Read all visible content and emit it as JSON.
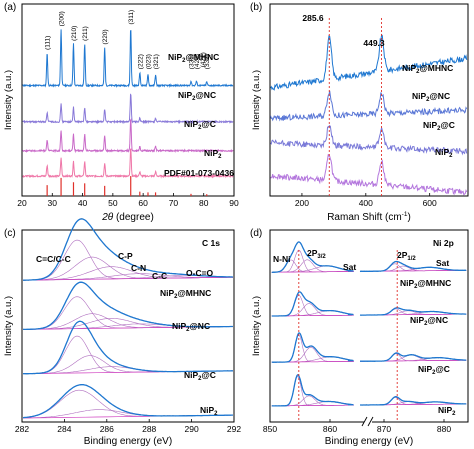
{
  "chart_data": [
    {
      "panel": "(a)",
      "type": "line",
      "xlabel_italic": "2θ",
      "xlabel_rest": " (degree)",
      "ylabel": "Intensity (a.u.)",
      "xlim": [
        20,
        90
      ],
      "xticks": [
        20,
        30,
        40,
        50,
        60,
        70,
        80,
        90
      ],
      "series": [
        {
          "name": "NiP₂@MHNC",
          "color": "#1f78d1",
          "offset": 3.05,
          "peaks": [
            [
              28.3,
              0.9
            ],
            [
              32.9,
              1.55
            ],
            [
              37.0,
              1.15
            ],
            [
              40.7,
              1.15
            ],
            [
              47.3,
              1.05
            ],
            [
              55.9,
              1.6
            ],
            [
              58.9,
              0.35
            ],
            [
              61.6,
              0.3
            ],
            [
              64.1,
              0.3
            ],
            [
              75.8,
              0.12
            ],
            [
              77.6,
              0.12
            ],
            [
              81.0,
              0.1
            ]
          ]
        },
        {
          "name": "NiP₂@NC",
          "color": "#8878d8",
          "offset": 2.05,
          "peaks": [
            [
              28.3,
              0.25
            ],
            [
              32.9,
              0.5
            ],
            [
              37.0,
              0.4
            ],
            [
              40.7,
              0.4
            ],
            [
              47.3,
              0.35
            ],
            [
              55.9,
              0.8
            ],
            [
              58.9,
              0.1
            ],
            [
              64.1,
              0.1
            ]
          ]
        },
        {
          "name": "NiP₂@C",
          "color": "#c969c8",
          "offset": 1.25,
          "peaks": [
            [
              28.3,
              0.3
            ],
            [
              32.9,
              0.55
            ],
            [
              37.0,
              0.45
            ],
            [
              40.7,
              0.45
            ],
            [
              47.3,
              0.4
            ],
            [
              55.9,
              0.9
            ],
            [
              58.9,
              0.12
            ],
            [
              64.1,
              0.12
            ]
          ]
        },
        {
          "name": "NiP₂",
          "color": "#ef77a8",
          "offset": 0.55,
          "peaks": [
            [
              28.3,
              0.3
            ],
            [
              32.9,
              0.5
            ],
            [
              37.0,
              0.4
            ],
            [
              40.7,
              0.4
            ],
            [
              47.3,
              0.35
            ],
            [
              55.9,
              0.8
            ],
            [
              58.9,
              0.12
            ],
            [
              64.1,
              0.12
            ]
          ]
        }
      ],
      "reference": {
        "name": "PDF#01-073-0436",
        "color": "#e0302a",
        "lines": [
          [
            28.3,
            0.3
          ],
          [
            32.9,
            0.5
          ],
          [
            37.0,
            0.38
          ],
          [
            40.7,
            0.35
          ],
          [
            47.3,
            0.28
          ],
          [
            55.9,
            0.55
          ],
          [
            58.9,
            0.12
          ],
          [
            61.6,
            0.1
          ],
          [
            64.1,
            0.1
          ],
          [
            75.8,
            0.06
          ],
          [
            81.0,
            0.05
          ]
        ]
      },
      "hkl": [
        {
          "x": 28.3,
          "label": "(111)"
        },
        {
          "x": 32.9,
          "label": "(200)"
        },
        {
          "x": 37.0,
          "label": "(210)"
        },
        {
          "x": 40.7,
          "label": "(211)"
        },
        {
          "x": 47.3,
          "label": "(220)"
        },
        {
          "x": 55.9,
          "label": "(311)"
        },
        {
          "x": 58.9,
          "label": "(222)"
        },
        {
          "x": 61.6,
          "label": "(023)"
        },
        {
          "x": 64.1,
          "label": "(321)"
        },
        {
          "x": 75.8,
          "label": "(331)"
        },
        {
          "x": 77.6,
          "label": "(420)"
        },
        {
          "x": 79.6,
          "label": "(421)"
        },
        {
          "x": 81.0,
          "label": "(332)"
        }
      ]
    },
    {
      "panel": "(b)",
      "type": "line",
      "xlabel": "Raman Shift (cm⁻¹)",
      "ylabel": "Intensity (a.u.)",
      "xlim": [
        100,
        720
      ],
      "xticks": [
        200,
        400,
        600
      ],
      "peak_labels": [
        285.6,
        449.3
      ],
      "series": [
        {
          "name": "NiP₂@MHNC",
          "color": "#1f78d1",
          "offset": 3.0,
          "slope": 0.35,
          "peaks": [
            [
              285.6,
              1.0
            ],
            [
              449.3,
              0.85
            ]
          ]
        },
        {
          "name": "NiP₂@NC",
          "color": "#5b78d6",
          "offset": 2.0,
          "slope": 0.1,
          "peaks": [
            [
              285.6,
              0.6
            ],
            [
              449.3,
              0.5
            ]
          ]
        },
        {
          "name": "NiP₂@C",
          "color": "#7a7ad8",
          "offset": 1.2,
          "slope": -0.1,
          "peaks": [
            [
              285.6,
              0.5
            ],
            [
              449.3,
              0.45
            ]
          ]
        },
        {
          "name": "NiP₂",
          "color": "#b477dd",
          "offset": 0.3,
          "slope": -0.2,
          "peaks": [
            [
              285.6,
              0.65
            ],
            [
              449.3,
              0.6
            ]
          ]
        }
      ]
    },
    {
      "panel": "(c)",
      "type": "line",
      "title": "C 1s",
      "xlabel": "Binding energy (eV)",
      "ylabel": "Intensity (a.u.)",
      "xlim": [
        282,
        292
      ],
      "xticks": [
        282,
        284,
        286,
        288,
        290,
        292
      ],
      "annotations": [
        "C=C/C-C",
        "C-P",
        "C-N",
        "C-C",
        "O-C=O"
      ],
      "series": [
        {
          "name": "NiP₂@MHNC",
          "offset": 2.85,
          "components": [
            [
              284.6,
              0.8,
              0.6
            ],
            [
              285.3,
              0.45,
              0.8
            ],
            [
              286.2,
              0.25,
              1.0
            ],
            [
              287.5,
              0.1,
              1.2
            ],
            [
              289.5,
              0.05,
              1.2
            ]
          ]
        },
        {
          "name": "NiP₂@NC",
          "offset": 1.85,
          "components": [
            [
              284.6,
              0.65,
              0.6
            ],
            [
              285.3,
              0.3,
              0.8
            ],
            [
              286.2,
              0.2,
              1.0
            ],
            [
              287.5,
              0.08,
              1.2
            ]
          ]
        },
        {
          "name": "NiP₂@C",
          "offset": 0.95,
          "components": [
            [
              284.6,
              0.75,
              0.55
            ],
            [
              285.2,
              0.35,
              0.7
            ],
            [
              286.2,
              0.12,
              1.0
            ]
          ]
        },
        {
          "name": "NiP₂",
          "offset": 0.05,
          "components": [
            [
              284.7,
              0.55,
              0.9
            ],
            [
              285.6,
              0.15,
              1.1
            ]
          ]
        }
      ]
    },
    {
      "panel": "(d)",
      "type": "line",
      "title": "Ni 2p",
      "xlabel": "Binding energy (eV)",
      "ylabel": "Intensity (a.u.)",
      "xticks": [
        850,
        860,
        870,
        880
      ],
      "axis_break": [
        864,
        866
      ],
      "xlim": [
        850,
        884
      ],
      "annotations": [
        "N-Ni",
        "2P3/2",
        "Sat",
        "2P1/2",
        "Sat"
      ],
      "ref_lines": [
        854.8,
        872.2
      ],
      "series": [
        {
          "name": "NiP₂@MHNC",
          "offset": 3.05,
          "components": [
            [
              853.5,
              0.25,
              0.8
            ],
            [
              854.8,
              0.45,
              0.7
            ],
            [
              856.2,
              0.25,
              1.0
            ],
            [
              859.5,
              0.12,
              2.0
            ],
            [
              871.8,
              0.15,
              0.8
            ],
            [
              873.2,
              0.1,
              1.0
            ],
            [
              877.5,
              0.07,
              2.0
            ]
          ]
        },
        {
          "name": "NiP₂@NC",
          "offset": 2.15,
          "components": [
            [
              854.8,
              0.42,
              0.7
            ],
            [
              856.5,
              0.25,
              1.0
            ],
            [
              860.0,
              0.1,
              2.0
            ],
            [
              872.0,
              0.12,
              0.8
            ],
            [
              874.0,
              0.08,
              1.2
            ],
            [
              878.0,
              0.06,
              2.0
            ]
          ]
        },
        {
          "name": "NiP₂@C",
          "offset": 1.2,
          "components": [
            [
              854.8,
              0.55,
              0.6
            ],
            [
              856.8,
              0.3,
              1.0
            ],
            [
              860.2,
              0.1,
              2.0
            ],
            [
              872.0,
              0.15,
              0.7
            ],
            [
              874.5,
              0.12,
              1.2
            ],
            [
              879.0,
              0.06,
              2.0
            ]
          ]
        },
        {
          "name": "NiP₂",
          "offset": 0.3,
          "components": [
            [
              854.6,
              0.6,
              0.6
            ],
            [
              856.5,
              0.2,
              1.0
            ],
            [
              859.8,
              0.08,
              2.0
            ],
            [
              871.9,
              0.15,
              0.7
            ],
            [
              874.0,
              0.06,
              1.2
            ],
            [
              878.5,
              0.05,
              2.0
            ]
          ]
        }
      ]
    }
  ],
  "labels": {
    "panel_a": "(a)",
    "panel_b": "(b)",
    "panel_c": "(c)",
    "panel_d": "(d)",
    "pdf": "PDF#01-073-0436",
    "nip2_base": "NiP",
    "sub2": "2",
    "mhnc": "@MHNC",
    "nc": "@NC",
    "c": "@C",
    "raman_xlabel": "Raman Shift (cm",
    "raman_sup": "-1",
    "raman_close": ")",
    "be_xlabel": "Binding energy (eV)",
    "ylabel": "Intensity (a.u.)",
    "c1s": "C 1s",
    "ni2p": "Ni 2p",
    "cc": "C=C/C-C",
    "cp": "C-P",
    "cn": "C-N",
    "c_c": "C-C",
    "oco": "O-C=O",
    "nni": "N-Ni",
    "p32_main": "2P",
    "p32_sub": "3/2",
    "p12_sub": "1/2",
    "sat": "Sat",
    "r1": "285.6",
    "r2": "449.3",
    "xrd_theta": "2θ",
    "xrd_rest": " (degree)"
  }
}
